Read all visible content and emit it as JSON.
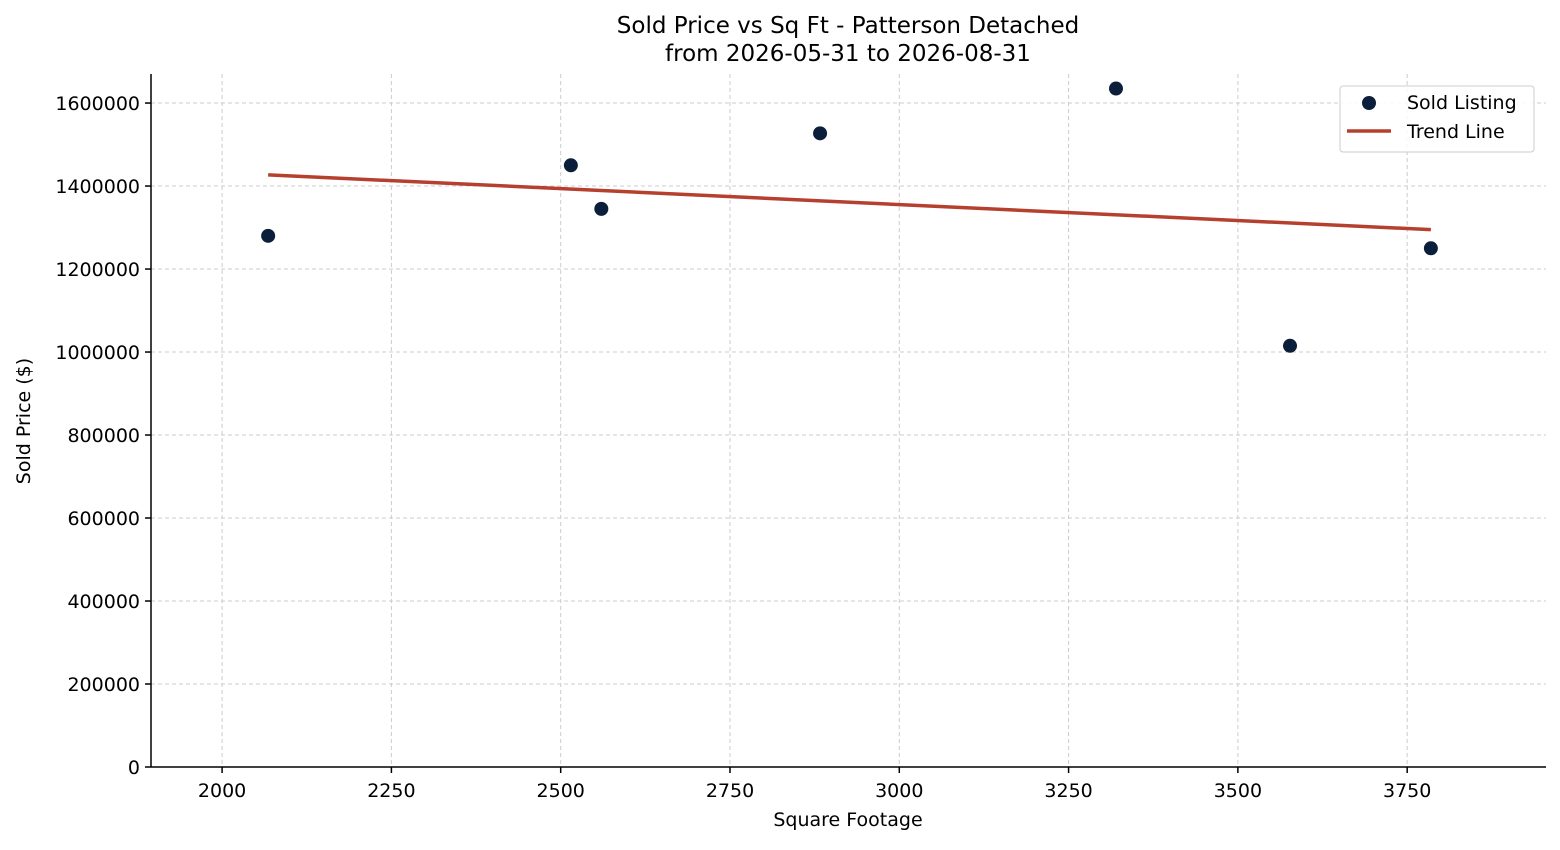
{
  "chart_data": {
    "type": "scatter",
    "title": "Sold Price vs Sq Ft - Patterson Detached",
    "subtitle": "from 2026-05-31 to 2026-08-31",
    "xlabel": "Square Footage",
    "ylabel": "Sold Price ($)",
    "xlim": [
      1895,
      3955
    ],
    "ylim": [
      0,
      1670000
    ],
    "xticks": [
      2000,
      2250,
      2500,
      2750,
      3000,
      3250,
      3500,
      3750
    ],
    "yticks": [
      0,
      200000,
      400000,
      600000,
      800000,
      1000000,
      1200000,
      1400000,
      1600000
    ],
    "grid": true,
    "legend_position": "top-right",
    "series": [
      {
        "name": "Sold Listing",
        "kind": "scatter",
        "color": "#0b1f3a",
        "points": [
          {
            "x": 2068,
            "y": 1280000
          },
          {
            "x": 2515,
            "y": 1450000
          },
          {
            "x": 2560,
            "y": 1345000
          },
          {
            "x": 2883,
            "y": 1527000
          },
          {
            "x": 3320,
            "y": 1635000
          },
          {
            "x": 3577,
            "y": 1015000
          },
          {
            "x": 3785,
            "y": 1250000
          }
        ]
      },
      {
        "name": "Trend Line",
        "kind": "line",
        "color": "#b5402e",
        "points": [
          {
            "x": 2068,
            "y": 1427000
          },
          {
            "x": 3785,
            "y": 1295000
          }
        ]
      }
    ]
  }
}
